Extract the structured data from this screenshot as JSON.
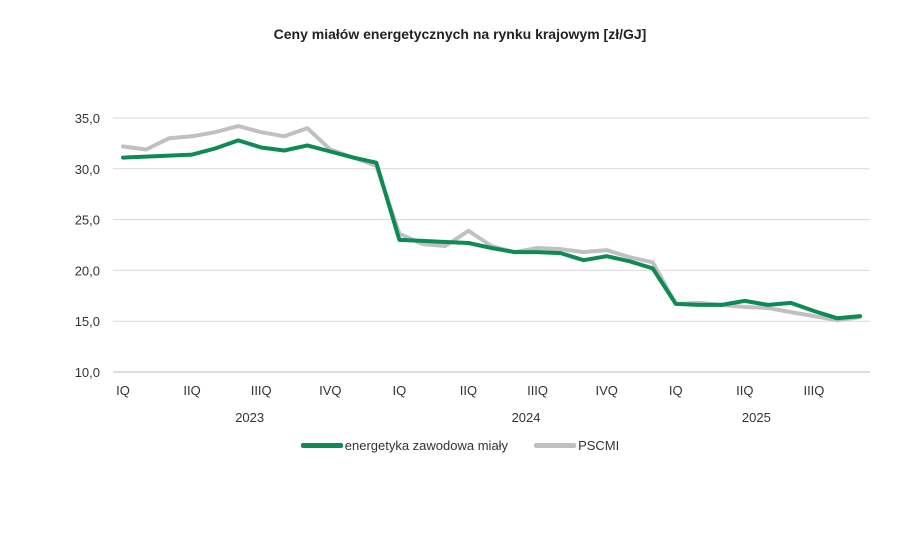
{
  "chart_data": {
    "type": "line",
    "title": "Ceny miałów energetycznych na rynku krajowym [zł/GJ]",
    "xlabel": "",
    "ylabel": "",
    "ylim": [
      10,
      35
    ],
    "yticks": [
      "35,0",
      "30,0",
      "25,0",
      "20,0",
      "15,0",
      "10,0"
    ],
    "ytick_values": [
      35,
      30,
      25,
      20,
      15,
      10
    ],
    "grid": true,
    "quarter_labels": [
      {
        "label": "IQ",
        "month": 1
      },
      {
        "label": "IIQ",
        "month": 4
      },
      {
        "label": "IIIQ",
        "month": 7
      },
      {
        "label": "IVQ",
        "month": 10
      },
      {
        "label": "IQ",
        "month": 13
      },
      {
        "label": "IIQ",
        "month": 16
      },
      {
        "label": "IIIQ",
        "month": 19
      },
      {
        "label": "IVQ",
        "month": 22
      },
      {
        "label": "IQ",
        "month": 25
      },
      {
        "label": "IIQ",
        "month": 28
      },
      {
        "label": "IIIQ",
        "month": 31
      }
    ],
    "year_labels": [
      {
        "label": "2023",
        "month": 6.5
      },
      {
        "label": "2024",
        "month": 18.5
      },
      {
        "label": "2025",
        "month": 28.5
      }
    ],
    "x": [
      1,
      2,
      3,
      4,
      5,
      6,
      7,
      8,
      9,
      10,
      11,
      12,
      13,
      14,
      15,
      16,
      17,
      18,
      19,
      20,
      21,
      22,
      23,
      24,
      25,
      26,
      27,
      28,
      29,
      30,
      31,
      32,
      33
    ],
    "series": [
      {
        "name": "energetyka zawodowa miały",
        "color": "#0e8a57",
        "values": [
          31.1,
          31.2,
          31.3,
          31.4,
          32.0,
          32.8,
          32.1,
          31.8,
          32.3,
          31.7,
          31.1,
          30.6,
          23.0,
          22.9,
          22.8,
          22.7,
          22.2,
          21.8,
          21.8,
          21.7,
          21.0,
          21.4,
          20.9,
          20.2,
          16.7,
          16.6,
          16.6,
          17.0,
          16.6,
          16.8,
          16.0,
          15.3,
          15.5
        ]
      },
      {
        "name": "PSCMI",
        "color": "#c0c0c0",
        "values": [
          32.2,
          31.9,
          33.0,
          33.2,
          33.6,
          34.2,
          33.6,
          33.2,
          34.0,
          31.9,
          31.1,
          30.3,
          23.6,
          22.6,
          22.4,
          23.9,
          22.4,
          21.8,
          22.2,
          22.1,
          21.8,
          22.0,
          21.3,
          20.8,
          16.7,
          16.8,
          16.6,
          16.4,
          16.3,
          15.9,
          15.5,
          15.1,
          15.4
        ]
      }
    ],
    "legend": "bottom-center"
  }
}
